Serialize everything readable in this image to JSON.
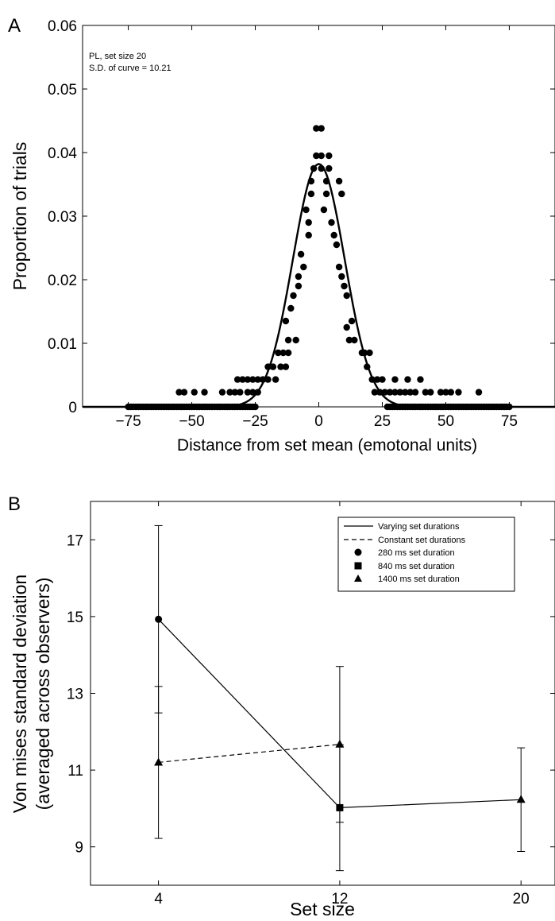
{
  "panels": {
    "a": {
      "letter": "A",
      "annotation_line1": "PL, set size 20",
      "annotation_line2": "S.D. of curve = 10.21",
      "xlabel": "Distance from set mean (emotonal units)",
      "ylabel": "Proportion of trials"
    },
    "b": {
      "letter": "B",
      "xlabel": "Set size",
      "ylabel_line1": "Von mises standard deviation",
      "ylabel_line2": "(averaged across observers)",
      "legend": {
        "varying": "Varying set durations",
        "constant": "Constant set durations",
        "d280": "280 ms set duration",
        "d840": "840 ms set duration",
        "d1400": "1400 ms set duration"
      }
    }
  },
  "chart_data": [
    {
      "type": "scatter",
      "title": "",
      "xlabel": "Distance from set mean (emotonal units)",
      "ylabel": "Proportion of trials",
      "xlim": [
        -93,
        93
      ],
      "ylim": [
        0,
        0.06
      ],
      "xticks": [
        -75,
        -50,
        -25,
        0,
        25,
        50,
        75
      ],
      "xtick_labels": [
        "−75",
        "−50",
        "−25",
        "0",
        "25",
        "50",
        "75"
      ],
      "yticks": [
        0,
        0.01,
        0.02,
        0.03,
        0.04,
        0.05,
        0.06
      ],
      "ytick_labels": [
        "0",
        "0.01",
        "0.02",
        "0.03",
        "0.04",
        "0.05",
        "0.06"
      ],
      "annotations": [
        "PL, set size 20",
        "S.D. of curve = 10.21"
      ],
      "fit_curve": {
        "shape": "gaussian",
        "mean": 0,
        "sd": 10.21,
        "peak": 0.0382
      },
      "points": [
        [
          -75,
          0
        ],
        [
          -74,
          0
        ],
        [
          -73,
          0
        ],
        [
          -72,
          0
        ],
        [
          -71,
          0
        ],
        [
          -70,
          0
        ],
        [
          -69,
          0
        ],
        [
          -68,
          0
        ],
        [
          -67,
          0
        ],
        [
          -66,
          0
        ],
        [
          -65,
          0
        ],
        [
          -64,
          0
        ],
        [
          -63,
          0
        ],
        [
          -62,
          0
        ],
        [
          -61,
          0
        ],
        [
          -60,
          0
        ],
        [
          -59,
          0
        ],
        [
          -58,
          0
        ],
        [
          -57,
          0
        ],
        [
          -56,
          0
        ],
        [
          -55,
          0
        ],
        [
          -54,
          0
        ],
        [
          -53,
          0
        ],
        [
          -52,
          0
        ],
        [
          -51,
          0
        ],
        [
          -50,
          0
        ],
        [
          -49,
          0
        ],
        [
          -48,
          0
        ],
        [
          -47,
          0
        ],
        [
          -46,
          0
        ],
        [
          -45,
          0
        ],
        [
          -44,
          0
        ],
        [
          -43,
          0
        ],
        [
          -42,
          0
        ],
        [
          -41,
          0
        ],
        [
          -40,
          0
        ],
        [
          -39,
          0
        ],
        [
          -38,
          0
        ],
        [
          -37,
          0
        ],
        [
          -36,
          0
        ],
        [
          -35,
          0
        ],
        [
          -34,
          0
        ],
        [
          -33,
          0
        ],
        [
          -32,
          0
        ],
        [
          -31,
          0
        ],
        [
          -30,
          0
        ],
        [
          -29,
          0
        ],
        [
          -28,
          0
        ],
        [
          -27,
          0
        ],
        [
          -26,
          0
        ],
        [
          -25,
          0
        ],
        [
          -55,
          0.0023
        ],
        [
          -53,
          0.0023
        ],
        [
          -49,
          0.0023
        ],
        [
          -45,
          0.0023
        ],
        [
          -38,
          0.0023
        ],
        [
          -35,
          0.0023
        ],
        [
          -33,
          0.0023
        ],
        [
          -31,
          0.0023
        ],
        [
          -28,
          0.0023
        ],
        [
          -26,
          0.0023
        ],
        [
          -24,
          0.0023
        ],
        [
          -32,
          0.0043
        ],
        [
          -30,
          0.0043
        ],
        [
          -28,
          0.0043
        ],
        [
          -26,
          0.0043
        ],
        [
          -24,
          0.0043
        ],
        [
          -22,
          0.0043
        ],
        [
          -20,
          0.0043
        ],
        [
          -17,
          0.0043
        ],
        [
          -20,
          0.0063
        ],
        [
          -18,
          0.0063
        ],
        [
          -15,
          0.0063
        ],
        [
          -13,
          0.0063
        ],
        [
          -16,
          0.0085
        ],
        [
          -14,
          0.0085
        ],
        [
          -12,
          0.0085
        ],
        [
          -12,
          0.0105
        ],
        [
          -9,
          0.0105
        ],
        [
          -13,
          0.0135
        ],
        [
          -11,
          0.0155
        ],
        [
          -10,
          0.0175
        ],
        [
          -8,
          0.019
        ],
        [
          -8,
          0.0205
        ],
        [
          -6,
          0.022
        ],
        [
          -7,
          0.024
        ],
        [
          -4,
          0.027
        ],
        [
          -4,
          0.029
        ],
        [
          -5,
          0.031
        ],
        [
          -3,
          0.0335
        ],
        [
          -3,
          0.0355
        ],
        [
          -2,
          0.0375
        ],
        [
          -1,
          0.0395
        ],
        [
          -1,
          0.0438
        ],
        [
          1,
          0.0438
        ],
        [
          1,
          0.0395
        ],
        [
          1,
          0.0375
        ],
        [
          2,
          0.031
        ],
        [
          3,
          0.0335
        ],
        [
          3,
          0.0355
        ],
        [
          4,
          0.0395
        ],
        [
          4,
          0.0375
        ],
        [
          5,
          0.029
        ],
        [
          6,
          0.027
        ],
        [
          7,
          0.0255
        ],
        [
          8,
          0.0355
        ],
        [
          9,
          0.0335
        ],
        [
          8,
          0.022
        ],
        [
          9,
          0.0205
        ],
        [
          10,
          0.019
        ],
        [
          11,
          0.0175
        ],
        [
          13,
          0.0135
        ],
        [
          11,
          0.0125
        ],
        [
          12,
          0.0105
        ],
        [
          14,
          0.0105
        ],
        [
          17,
          0.0085
        ],
        [
          18,
          0.0085
        ],
        [
          20,
          0.0085
        ],
        [
          19,
          0.0063
        ],
        [
          21,
          0.0043
        ],
        [
          23,
          0.0043
        ],
        [
          25,
          0.0043
        ],
        [
          30,
          0.0043
        ],
        [
          35,
          0.0043
        ],
        [
          40,
          0.0043
        ],
        [
          22,
          0.0023
        ],
        [
          24,
          0.0023
        ],
        [
          26,
          0.0023
        ],
        [
          28,
          0.0023
        ],
        [
          30,
          0.0023
        ],
        [
          32,
          0.0023
        ],
        [
          34,
          0.0023
        ],
        [
          36,
          0.0023
        ],
        [
          38,
          0.0023
        ],
        [
          42,
          0.0023
        ],
        [
          44,
          0.0023
        ],
        [
          48,
          0.0023
        ],
        [
          50,
          0.0023
        ],
        [
          52,
          0.0023
        ],
        [
          55,
          0.0023
        ],
        [
          63,
          0.0023
        ],
        [
          27,
          0
        ],
        [
          28,
          0
        ],
        [
          29,
          0
        ],
        [
          30,
          0
        ],
        [
          31,
          0
        ],
        [
          32,
          0
        ],
        [
          33,
          0
        ],
        [
          34,
          0
        ],
        [
          35,
          0
        ],
        [
          36,
          0
        ],
        [
          37,
          0
        ],
        [
          38,
          0
        ],
        [
          39,
          0
        ],
        [
          40,
          0
        ],
        [
          41,
          0
        ],
        [
          42,
          0
        ],
        [
          43,
          0
        ],
        [
          44,
          0
        ],
        [
          45,
          0
        ],
        [
          46,
          0
        ],
        [
          47,
          0
        ],
        [
          48,
          0
        ],
        [
          49,
          0
        ],
        [
          50,
          0
        ],
        [
          51,
          0
        ],
        [
          52,
          0
        ],
        [
          53,
          0
        ],
        [
          54,
          0
        ],
        [
          55,
          0
        ],
        [
          56,
          0
        ],
        [
          57,
          0
        ],
        [
          58,
          0
        ],
        [
          59,
          0
        ],
        [
          60,
          0
        ],
        [
          61,
          0
        ],
        [
          62,
          0
        ],
        [
          63,
          0
        ],
        [
          64,
          0
        ],
        [
          65,
          0
        ],
        [
          66,
          0
        ],
        [
          67,
          0
        ],
        [
          68,
          0
        ],
        [
          69,
          0
        ],
        [
          70,
          0
        ],
        [
          71,
          0
        ],
        [
          72,
          0
        ],
        [
          73,
          0
        ],
        [
          74,
          0
        ],
        [
          75,
          0
        ]
      ]
    },
    {
      "type": "line",
      "title": "",
      "xlabel": "Set size",
      "ylabel": "Von mises standard deviation (averaged across observers)",
      "xlim": [
        1,
        21.5
      ],
      "ylim": [
        8,
        18
      ],
      "xticks": [
        4,
        12,
        20
      ],
      "xtick_labels": [
        "4",
        "12",
        "20"
      ],
      "yticks": [
        9,
        11,
        13,
        15,
        17
      ],
      "ytick_labels": [
        "9",
        "11",
        "13",
        "15",
        "17"
      ],
      "legend_position": "top-right",
      "series": [
        {
          "name": "Varying set durations",
          "style": "solid",
          "points": [
            {
              "x": 4,
              "y": 14.93,
              "err": [
                12.49,
                17.37
              ],
              "marker": "circle"
            },
            {
              "x": 12,
              "y": 10.02,
              "err": [
                8.38,
                11.66
              ],
              "marker": "square"
            },
            {
              "x": 20,
              "y": 10.23,
              "err": [
                8.88,
                11.58
              ],
              "marker": "triangle"
            }
          ]
        },
        {
          "name": "Constant set durations",
          "style": "dashed",
          "points": [
            {
              "x": 4,
              "y": 11.2,
              "err": [
                9.22,
                13.18
              ],
              "marker": "triangle"
            },
            {
              "x": 12,
              "y": 11.67,
              "err": [
                9.64,
                13.7
              ],
              "marker": "triangle"
            }
          ]
        }
      ],
      "marker_legend": {
        "circle": "280 ms set duration",
        "square": "840 ms set duration",
        "triangle": "1400 ms set duration"
      }
    }
  ]
}
